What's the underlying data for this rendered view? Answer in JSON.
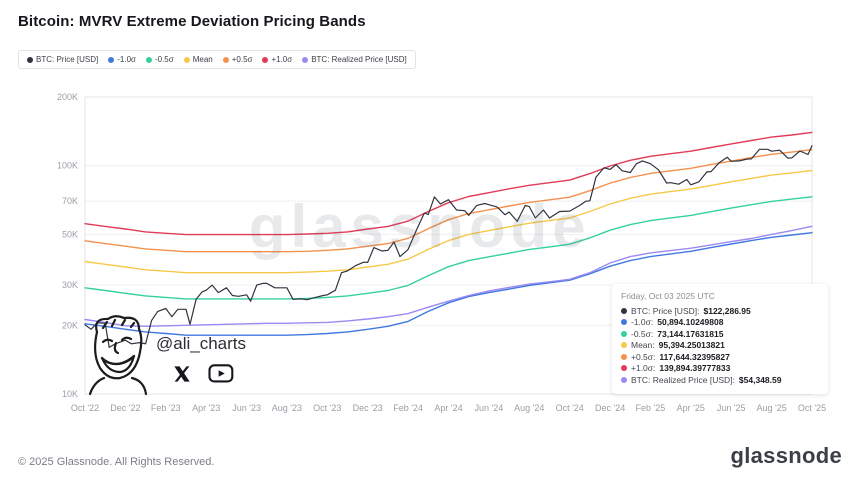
{
  "header": {
    "title": "Bitcoin: MVRV Extreme Deviation Pricing Bands"
  },
  "watermarks": {
    "center_brand": "glassnode",
    "handle": "@ali_charts",
    "icons": [
      "x-twitter-icon",
      "youtube-icon"
    ]
  },
  "tooltip": {
    "date": "Friday, Oct 03 2025 UTC",
    "rows": [
      {
        "label": "BTC: Price [USD]:",
        "value": "$122,286.95",
        "color": "#31343f"
      },
      {
        "label": "-1.0σ:",
        "value": "50,894.10249808",
        "color": "#4178e0"
      },
      {
        "label": "-0.5σ:",
        "value": "73,144.17631815",
        "color": "#35d0a0"
      },
      {
        "label": "Mean:",
        "value": "95,394.25013821",
        "color": "#f7c948"
      },
      {
        "label": "+0.5σ:",
        "value": "117,644.32395827",
        "color": "#f5914d"
      },
      {
        "label": "+1.0σ:",
        "value": "139,894.39777833",
        "color": "#e23b57"
      },
      {
        "label": "BTC: Realized Price [USD]:",
        "value": "$54,348.59",
        "color": "#9b8af2"
      }
    ]
  },
  "footer": {
    "copyright": "© 2025 Glassnode. All Rights Reserved.",
    "brand": "glassnode"
  },
  "chart_data": {
    "type": "line",
    "title": "Bitcoin: MVRV Extreme Deviation Pricing Bands",
    "y_scale": "log",
    "y_axis_unit": "USD",
    "values_unit": "thousand USD",
    "ylim_k": [
      10,
      200
    ],
    "yticks": [
      {
        "label": "200K",
        "v": 200
      },
      {
        "label": "100K",
        "v": 100
      },
      {
        "label": "70K",
        "v": 70
      },
      {
        "label": "50K",
        "v": 50
      },
      {
        "label": "30K",
        "v": 30
      },
      {
        "label": "20K",
        "v": 20
      },
      {
        "label": "10K",
        "v": 10
      }
    ],
    "x_range": [
      0,
      36
    ],
    "x_note": "month index: 0 = Oct 2022, 36 = Oct 2025",
    "xticks": [
      {
        "label": "Oct '22",
        "i": 0
      },
      {
        "label": "Dec '22",
        "i": 2
      },
      {
        "label": "Feb '23",
        "i": 4
      },
      {
        "label": "Apr '23",
        "i": 6
      },
      {
        "label": "Jun '23",
        "i": 8
      },
      {
        "label": "Aug '23",
        "i": 10
      },
      {
        "label": "Oct '23",
        "i": 12
      },
      {
        "label": "Dec '23",
        "i": 14
      },
      {
        "label": "Feb '24",
        "i": 16
      },
      {
        "label": "Apr '24",
        "i": 18
      },
      {
        "label": "Jun '24",
        "i": 20
      },
      {
        "label": "Aug '24",
        "i": 22
      },
      {
        "label": "Oct '24",
        "i": 24
      },
      {
        "label": "Dec '24",
        "i": 26
      },
      {
        "label": "Feb '25",
        "i": 28
      },
      {
        "label": "Apr '25",
        "i": 30
      },
      {
        "label": "Jun '25",
        "i": 32
      },
      {
        "label": "Aug '25",
        "i": 34
      },
      {
        "label": "Oct '25",
        "i": 36
      }
    ],
    "draw_order": [
      "+1.0σ",
      "+0.5σ",
      "Mean",
      "-0.5σ",
      "-1.0σ",
      "BTC: Realized Price [USD]",
      "BTC: Price [USD]"
    ],
    "series": [
      {
        "name": "BTC: Price [USD]",
        "color": "#31343f",
        "x": [
          0,
          0.3,
          0.6,
          1.0,
          1.2,
          1.5,
          2.0,
          2.3,
          2.7,
          3.0,
          3.3,
          3.6,
          4.0,
          4.3,
          4.6,
          5.0,
          5.2,
          5.5,
          5.8,
          6.0,
          6.3,
          6.6,
          7.0,
          7.3,
          7.6,
          8.0,
          8.2,
          8.5,
          8.8,
          9.0,
          9.4,
          9.8,
          10.0,
          10.3,
          10.7,
          11.0,
          11.4,
          11.8,
          12.0,
          12.4,
          12.7,
          13.0,
          13.4,
          13.8,
          14.0,
          14.3,
          14.7,
          15.0,
          15.3,
          15.6,
          16.0,
          16.4,
          16.8,
          17.0,
          17.3,
          17.6,
          18.0,
          18.4,
          18.8,
          19.0,
          19.4,
          19.8,
          20.0,
          20.4,
          20.8,
          21.0,
          21.4,
          21.8,
          22.0,
          22.3,
          22.7,
          23.0,
          23.5,
          24.0,
          24.5,
          24.8,
          25.0,
          25.3,
          25.7,
          26.0,
          26.3,
          26.6,
          27.0,
          27.3,
          27.6,
          28.0,
          28.4,
          28.8,
          29.0,
          29.4,
          29.8,
          30.0,
          30.4,
          30.8,
          31.0,
          31.4,
          31.8,
          32.0,
          32.4,
          32.8,
          33.0,
          33.4,
          33.8,
          34.0,
          34.4,
          34.8,
          35.0,
          35.4,
          35.8,
          36.0
        ],
        "values": [
          20.1,
          19.2,
          20.5,
          20.4,
          16.0,
          16.6,
          17.2,
          16.6,
          16.8,
          16.6,
          21.0,
          23.0,
          23.7,
          21.8,
          23.5,
          23.5,
          20.2,
          26.0,
          28.0,
          28.5,
          30.0,
          27.8,
          29.2,
          27.0,
          26.8,
          27.2,
          25.5,
          30.0,
          30.5,
          30.5,
          29.2,
          29.2,
          29.2,
          26.0,
          26.1,
          25.9,
          26.5,
          27.0,
          27.2,
          28.5,
          34.0,
          34.6,
          36.5,
          37.8,
          37.7,
          43.8,
          42.3,
          42.6,
          46.3,
          40.0,
          43.0,
          52.0,
          62.0,
          61.2,
          73.0,
          68.0,
          71.0,
          64.0,
          63.5,
          60.6,
          67.0,
          68.3,
          67.5,
          66.0,
          61.0,
          62.7,
          57.0,
          67.0,
          66.2,
          59.0,
          64.0,
          59.0,
          63.0,
          63.3,
          67.0,
          69.9,
          70.2,
          89.0,
          98.0,
          96.4,
          101.0,
          95.0,
          93.4,
          102.0,
          105.0,
          102.1,
          96.0,
          84.0,
          84.3,
          83.0,
          87.0,
          82.5,
          85.0,
          94.0,
          94.2,
          103.0,
          109.0,
          104.6,
          105.0,
          107.0,
          107.1,
          118.0,
          118.0,
          115.8,
          117.0,
          108.0,
          108.2,
          116.0,
          112.0,
          122.3
        ]
      },
      {
        "name": "-1.0σ",
        "color": "#4178e0",
        "values": [
          20.3,
          19.8,
          19.2,
          18.7,
          18.4,
          18.1,
          18.1,
          18.1,
          18.1,
          18.1,
          18.1,
          18.2,
          18.4,
          18.7,
          19.2,
          19.8,
          20.8,
          23.0,
          25.1,
          26.7,
          27.8,
          28.8,
          29.9,
          30.7,
          31.5,
          33.6,
          36.3,
          38.4,
          40.0,
          41.1,
          42.2,
          43.8,
          45.4,
          47.0,
          48.6,
          49.7,
          50.9
        ]
      },
      {
        "name": "-0.5σ",
        "color": "#35d0a0",
        "values": [
          29.2,
          28.4,
          27.6,
          26.9,
          26.5,
          26.1,
          26.1,
          26.1,
          26.1,
          26.1,
          26.1,
          26.2,
          26.5,
          26.9,
          27.6,
          28.4,
          29.9,
          33.0,
          36.1,
          38.4,
          39.9,
          41.4,
          43.0,
          44.1,
          45.3,
          48.3,
          52.2,
          55.2,
          57.5,
          59.1,
          60.6,
          62.9,
          65.2,
          67.5,
          69.8,
          71.4,
          73.1
        ]
      },
      {
        "name": "Mean",
        "color": "#f7c948",
        "values": [
          38.0,
          37.0,
          36.0,
          35.0,
          34.5,
          34.0,
          34.0,
          34.0,
          34.0,
          34.0,
          34.0,
          34.2,
          34.5,
          35.0,
          36.0,
          37.0,
          39.0,
          43.0,
          47.0,
          50.0,
          52.0,
          54.0,
          56.0,
          57.5,
          59.0,
          63.0,
          68.0,
          72.0,
          75.0,
          77.0,
          79.0,
          82.0,
          85.0,
          88.0,
          91.0,
          93.0,
          95.4
        ]
      },
      {
        "name": "+0.5σ",
        "color": "#f5914d",
        "values": [
          46.9,
          45.6,
          44.4,
          43.2,
          42.6,
          42.0,
          42.0,
          42.0,
          42.0,
          42.0,
          42.0,
          42.2,
          42.6,
          43.2,
          44.4,
          45.6,
          48.1,
          53.0,
          58.0,
          61.7,
          64.1,
          66.6,
          69.1,
          70.9,
          72.8,
          77.7,
          83.9,
          88.8,
          92.5,
          95.0,
          97.4,
          101.1,
          104.8,
          108.5,
          112.2,
          114.7,
          117.6
        ]
      },
      {
        "name": "+1.0σ",
        "color": "#e23b57",
        "values": [
          55.7,
          54.2,
          52.8,
          51.3,
          50.6,
          49.9,
          49.9,
          49.9,
          49.9,
          49.9,
          49.9,
          50.2,
          50.6,
          51.3,
          52.8,
          54.2,
          57.2,
          63.0,
          68.9,
          73.3,
          76.2,
          79.2,
          82.1,
          84.3,
          86.5,
          92.4,
          99.7,
          105.6,
          110.0,
          112.9,
          115.8,
          120.2,
          124.6,
          129.0,
          133.4,
          136.3,
          139.9
        ]
      },
      {
        "name": "BTC: Realized Price [USD]",
        "color": "#9b8af2",
        "values": [
          21.2,
          20.6,
          19.9,
          19.8,
          19.9,
          20.0,
          20.1,
          20.2,
          20.3,
          20.4,
          20.4,
          20.5,
          20.6,
          20.9,
          21.3,
          21.8,
          22.5,
          24.0,
          25.5,
          27.0,
          28.3,
          29.3,
          30.3,
          31.0,
          31.8,
          34.0,
          37.5,
          40.0,
          41.5,
          42.5,
          43.5,
          45.0,
          46.5,
          48.0,
          50.0,
          52.0,
          54.3
        ]
      }
    ]
  }
}
